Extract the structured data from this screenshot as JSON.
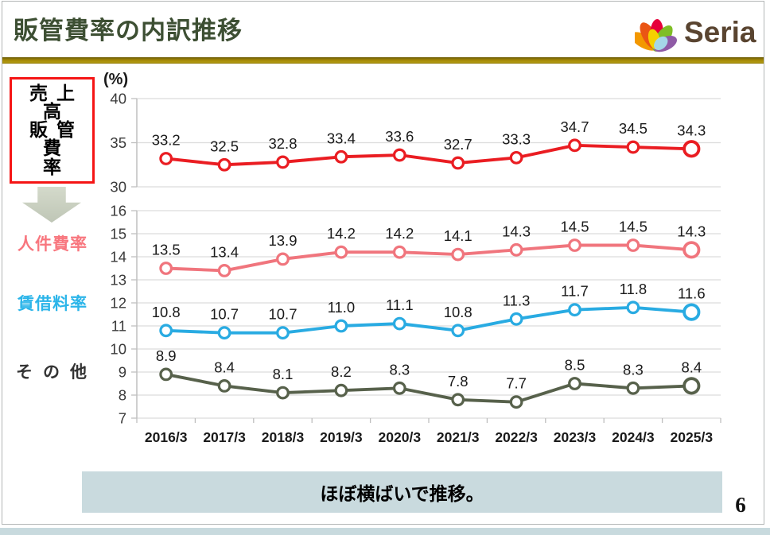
{
  "header": {
    "title": "販管費率の内訳推移",
    "logo_text": "Seria"
  },
  "sidebar": {
    "box_label_lines": [
      "売上高",
      "販管費",
      "率"
    ],
    "series_labels": [
      {
        "text": "人件費率",
        "color": "#F8767E"
      },
      {
        "text": "賃借料率",
        "color": "#2CB5E9"
      },
      {
        "text": "その他",
        "color": "#333333"
      }
    ]
  },
  "chart_data": {
    "type": "line",
    "title": "販管費率の内訳推移",
    "unit_label": "(%)",
    "categories": [
      "2016/3",
      "2017/3",
      "2018/3",
      "2019/3",
      "2020/3",
      "2021/3",
      "2022/3",
      "2023/3",
      "2024/3",
      "2025/3"
    ],
    "panels": {
      "top": {
        "ylim": [
          30,
          40
        ],
        "ticks": [
          40,
          35,
          30
        ]
      },
      "bottom": {
        "ylim": [
          7,
          16
        ],
        "ticks": [
          16,
          15,
          14,
          13,
          12,
          11,
          10,
          9,
          8,
          7
        ]
      }
    },
    "series": [
      {
        "name": "売上高販管費率",
        "panel": "top",
        "color": "#ea1d22",
        "values": [
          33.2,
          32.5,
          32.8,
          33.4,
          33.6,
          32.7,
          33.3,
          34.7,
          34.5,
          34.3
        ]
      },
      {
        "name": "人件費率",
        "panel": "bottom",
        "color": "#f0757d",
        "values": [
          13.5,
          13.4,
          13.9,
          14.2,
          14.2,
          14.1,
          14.3,
          14.5,
          14.5,
          14.3
        ]
      },
      {
        "name": "賃借料率",
        "panel": "bottom",
        "color": "#29abe2",
        "values": [
          10.8,
          10.7,
          10.7,
          11.0,
          11.1,
          10.8,
          11.3,
          11.7,
          11.8,
          11.6
        ]
      },
      {
        "name": "その他",
        "panel": "bottom",
        "color": "#57614b",
        "values": [
          8.9,
          8.4,
          8.1,
          8.2,
          8.3,
          7.8,
          7.7,
          8.5,
          8.3,
          8.4
        ]
      }
    ],
    "grid": true,
    "legend_position": "left-sidebar",
    "marker": "open-circle"
  },
  "footer": {
    "note": "ほぼ横ばいで推移。",
    "page_number": "6"
  }
}
